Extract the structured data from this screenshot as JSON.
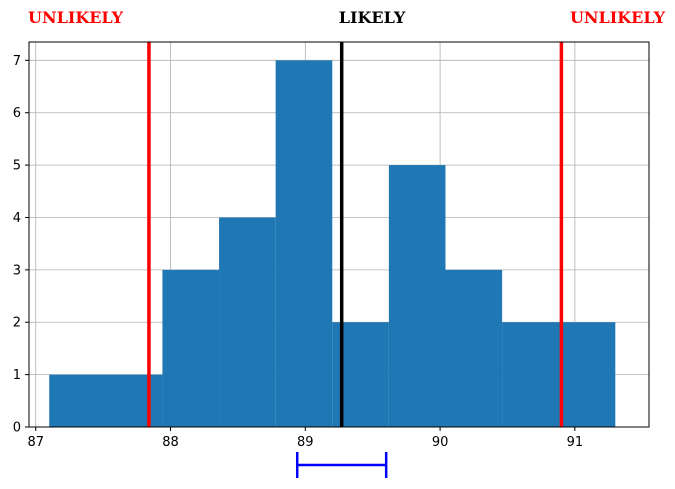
{
  "chart_data": {
    "type": "bar",
    "subtype": "histogram",
    "title": "",
    "xlabel": "",
    "ylabel": "",
    "xlim": [
      86.95,
      91.55
    ],
    "ylim": [
      0,
      7.35
    ],
    "grid": true,
    "x_ticks": [
      87,
      88,
      89,
      90,
      91
    ],
    "y_ticks": [
      0,
      1,
      2,
      3,
      4,
      5,
      6,
      7
    ],
    "bins": [
      {
        "start": 87.1,
        "end": 87.94,
        "count": 1
      },
      {
        "start": 87.94,
        "end": 88.36,
        "count": 3
      },
      {
        "start": 88.36,
        "end": 88.78,
        "count": 4
      },
      {
        "start": 88.78,
        "end": 89.2,
        "count": 7
      },
      {
        "start": 89.2,
        "end": 89.62,
        "count": 2
      },
      {
        "start": 89.62,
        "end": 90.04,
        "count": 5
      },
      {
        "start": 90.04,
        "end": 90.46,
        "count": 3
      },
      {
        "start": 90.46,
        "end": 91.3,
        "count": 2
      }
    ],
    "bar_color": "#1f77b4",
    "vlines": [
      {
        "x": 87.84,
        "color": "#ff0000",
        "role": "lower-bound"
      },
      {
        "x": 89.27,
        "color": "#000000",
        "role": "center"
      },
      {
        "x": 90.9,
        "color": "#ff0000",
        "role": "upper-bound"
      }
    ],
    "interval_bar": {
      "x_start": 88.94,
      "x_end": 89.6,
      "color": "#0000ff"
    },
    "annotations": {
      "left": {
        "text": "UNLIKELY",
        "color": "#ff0000"
      },
      "center": {
        "text": "LIKELY",
        "color": "#000000"
      },
      "right": {
        "text": "UNLIKELY",
        "color": "#ff0000"
      }
    }
  }
}
